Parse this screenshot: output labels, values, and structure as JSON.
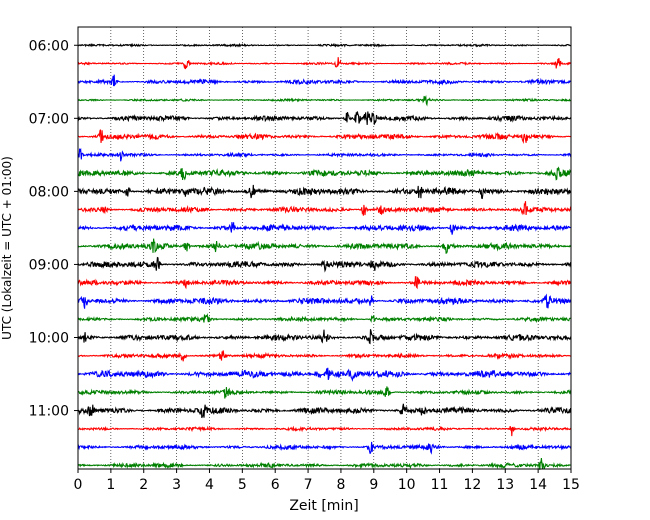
{
  "chart_data": {
    "type": "line",
    "title": "",
    "xlabel": "Zeit  [min]",
    "ylabel": "UTC (Lokalzeit = UTC + 01:00)",
    "xlim": [
      0,
      15
    ],
    "x_ticks": [
      "0",
      "1",
      "2",
      "3",
      "4",
      "5",
      "6",
      "7",
      "8",
      "9",
      "10",
      "11",
      "12",
      "13",
      "14",
      "15"
    ],
    "y_tick_labels": [
      "06:00",
      "07:00",
      "08:00",
      "09:00",
      "10:00",
      "11:00"
    ],
    "y_range_utc": [
      "05:45",
      "11:48"
    ],
    "grid": "vertical dotted at each minute",
    "trace_interval_min": 15,
    "trace_colors": [
      "#000000",
      "#ff0000",
      "#0000ff",
      "#008000"
    ],
    "traces": [
      {
        "utc": "06:00",
        "color": "#000000",
        "amplitude": 1.0,
        "events": []
      },
      {
        "utc": "06:15",
        "color": "#ff0000",
        "amplitude": 1.0,
        "events": [
          3.3,
          7.9,
          14.6
        ]
      },
      {
        "utc": "06:30",
        "color": "#0000ff",
        "amplitude": 2.0,
        "events": [
          1.1
        ]
      },
      {
        "utc": "06:45",
        "color": "#008000",
        "amplitude": 1.0,
        "events": [
          10.6
        ]
      },
      {
        "utc": "07:00",
        "color": "#000000",
        "amplitude": 2.5,
        "events": [
          8.2,
          8.5,
          8.8,
          9.0
        ]
      },
      {
        "utc": "07:15",
        "color": "#ff0000",
        "amplitude": 2.5,
        "events": [
          0.7,
          13.6
        ]
      },
      {
        "utc": "07:30",
        "color": "#0000ff",
        "amplitude": 1.5,
        "events": [
          0.05,
          1.3
        ]
      },
      {
        "utc": "07:45",
        "color": "#008000",
        "amplitude": 3.0,
        "events": [
          3.2,
          14.6
        ]
      },
      {
        "utc": "08:00",
        "color": "#000000",
        "amplitude": 3.5,
        "events": [
          1.5,
          3.3,
          5.3,
          10.4,
          12.3
        ]
      },
      {
        "utc": "08:15",
        "color": "#ff0000",
        "amplitude": 2.5,
        "events": [
          0.8,
          8.7,
          9.2,
          13.6
        ]
      },
      {
        "utc": "08:30",
        "color": "#0000ff",
        "amplitude": 3.0,
        "events": [
          4.7,
          11.4
        ]
      },
      {
        "utc": "08:45",
        "color": "#008000",
        "amplitude": 3.0,
        "events": [
          2.3,
          3.3,
          4.2,
          11.2
        ]
      },
      {
        "utc": "09:00",
        "color": "#000000",
        "amplitude": 3.0,
        "events": [
          2.4,
          7.5,
          9.0
        ]
      },
      {
        "utc": "09:15",
        "color": "#ff0000",
        "amplitude": 2.5,
        "events": [
          3.3,
          10.3
        ]
      },
      {
        "utc": "09:30",
        "color": "#0000ff",
        "amplitude": 3.0,
        "events": [
          0.2,
          8.9,
          14.3
        ]
      },
      {
        "utc": "09:45",
        "color": "#008000",
        "amplitude": 2.0,
        "events": [
          3.9,
          9.0
        ]
      },
      {
        "utc": "10:00",
        "color": "#000000",
        "amplitude": 3.0,
        "events": [
          0.2,
          7.5,
          8.9
        ]
      },
      {
        "utc": "10:15",
        "color": "#ff0000",
        "amplitude": 2.0,
        "events": [
          3.2,
          4.4
        ]
      },
      {
        "utc": "10:30",
        "color": "#0000ff",
        "amplitude": 3.5,
        "events": [
          7.3,
          7.6,
          8.3
        ]
      },
      {
        "utc": "10:45",
        "color": "#008000",
        "amplitude": 2.0,
        "events": [
          4.5,
          9.4
        ]
      },
      {
        "utc": "11:00",
        "color": "#000000",
        "amplitude": 3.0,
        "events": [
          0.4,
          3.8,
          9.9,
          10.5
        ]
      },
      {
        "utc": "11:15",
        "color": "#ff0000",
        "amplitude": 1.5,
        "events": [
          13.2
        ]
      },
      {
        "utc": "11:30",
        "color": "#0000ff",
        "amplitude": 2.0,
        "events": [
          8.9,
          10.7
        ]
      },
      {
        "utc": "11:45",
        "color": "#008000",
        "amplitude": 2.0,
        "events": [
          14.1
        ]
      }
    ]
  }
}
